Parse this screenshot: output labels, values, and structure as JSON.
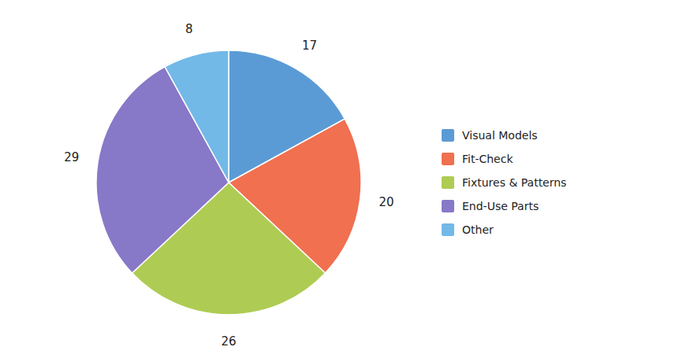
{
  "chart_data": {
    "type": "pie",
    "categories": [
      "Visual Models",
      "Fit-Check",
      "Fixtures & Patterns",
      "End-Use Parts",
      "Other"
    ],
    "values": [
      17,
      20,
      26,
      29,
      8
    ],
    "colors": [
      "#5B9BD5",
      "#F07050",
      "#AECC53",
      "#8878C8",
      "#72B9E8"
    ],
    "data_labels": true,
    "legend": "right"
  }
}
